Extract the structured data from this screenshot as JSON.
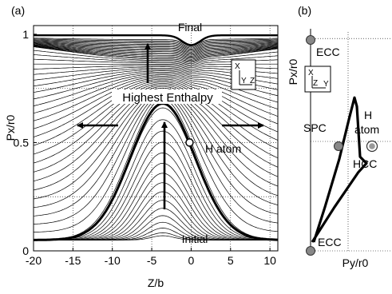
{
  "chart_data": [
    {
      "panel_label": "(a)",
      "type": "line",
      "xlabel": "Z/b",
      "ylabel": "Px/r0",
      "xlim": [
        -20,
        11
      ],
      "ylim": [
        0,
        1.04
      ],
      "xticks": [
        -20,
        -15,
        -10,
        -5,
        0,
        5,
        10
      ],
      "xtick_labels": [
        "-20",
        "-15",
        "-10",
        "-5",
        "0",
        "5",
        "10"
      ],
      "yticks": [
        0,
        0.5,
        1
      ],
      "ytick_labels": [
        "0",
        "0.5",
        "1"
      ],
      "grid": "dotted",
      "annotations": {
        "final": "Final",
        "highest": "Highest Enthalpy",
        "h_atom": "H atom",
        "initial": "Initial"
      },
      "inset_axes": {
        "x": "X",
        "y": "Y",
        "z": "Z"
      },
      "families": {
        "initial_baseline": 0.05,
        "bump_center_z": -3.6,
        "lower_peak_range": [
          0.07,
          0.66
        ],
        "highest_enthalpy_peak": 0.68,
        "upper_center_range": [
          0.7,
          0.975
        ],
        "final_curve_center": 0.955,
        "h_atom_point": {
          "z": -0.2,
          "px": 0.5
        }
      }
    },
    {
      "panel_label": "(b)",
      "type": "line",
      "xlabel": "Py/r0",
      "ylabel": "Px/r0",
      "xlim": [
        0,
        1
      ],
      "ylim": [
        0,
        1
      ],
      "grid": "dotted",
      "points": [
        {
          "label": "ECC",
          "py": 0.0,
          "px": 0.97,
          "marker": "filled-circle"
        },
        {
          "label": "ECC",
          "py": 0.0,
          "px": 0.0,
          "marker": "filled-circle"
        },
        {
          "label": "SPC",
          "py": 0.47,
          "px": 0.5,
          "marker": "filled-circle"
        },
        {
          "label": "HCC",
          "py": 0.98,
          "px": 0.5,
          "marker": "ring"
        }
      ],
      "h_atom_label": [
        "H",
        "atom"
      ],
      "inset_axes": {
        "x": "X",
        "y": "Y",
        "z": "Z"
      },
      "path": [
        [
          0.04,
          0.04
        ],
        [
          0.18,
          0.2
        ],
        [
          0.36,
          0.42
        ],
        [
          0.48,
          0.6
        ],
        [
          0.55,
          0.7
        ],
        [
          0.58,
          0.66
        ],
        [
          0.62,
          0.43
        ],
        [
          0.7,
          0.4
        ],
        [
          0.6,
          0.36
        ],
        [
          0.3,
          0.2
        ],
        [
          0.02,
          0.04
        ]
      ]
    }
  ]
}
